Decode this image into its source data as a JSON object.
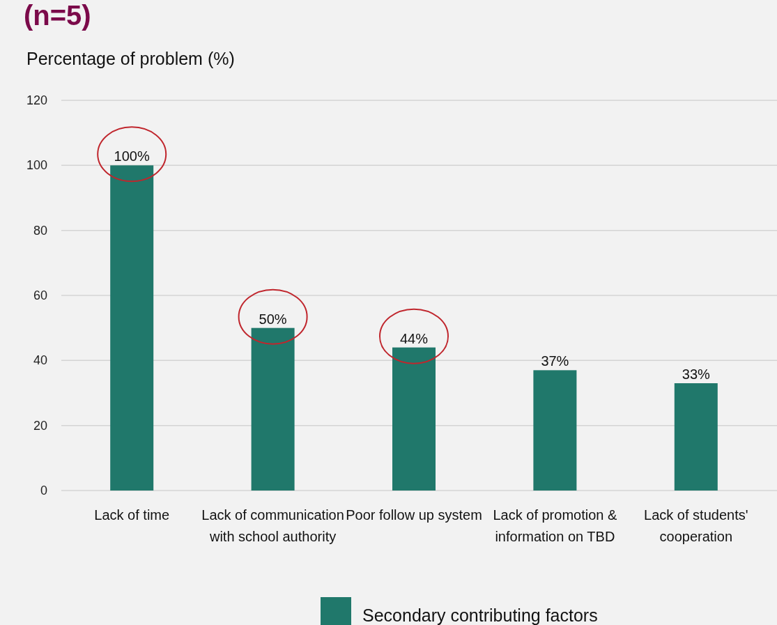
{
  "chart_data": {
    "type": "bar",
    "title": "(n=5)",
    "ylabel": "Percentage of problem (%)",
    "categories": [
      "Lack of time",
      "Lack of communication with school authority",
      "Poor follow up system",
      "Lack of promotion & information on TBD",
      "Lack of students' cooperation"
    ],
    "series": [
      {
        "name": "Secondary contributing factors",
        "color": "#20786b",
        "values": [
          100,
          50,
          44,
          37,
          33
        ],
        "value_labels": [
          "100%",
          "50%",
          "44%",
          "37%",
          "33%"
        ]
      }
    ],
    "ylim": [
      0,
      120
    ],
    "yticks": [
      0,
      20,
      40,
      60,
      80,
      100,
      120
    ],
    "grid": "y",
    "legend": "bottom"
  }
}
